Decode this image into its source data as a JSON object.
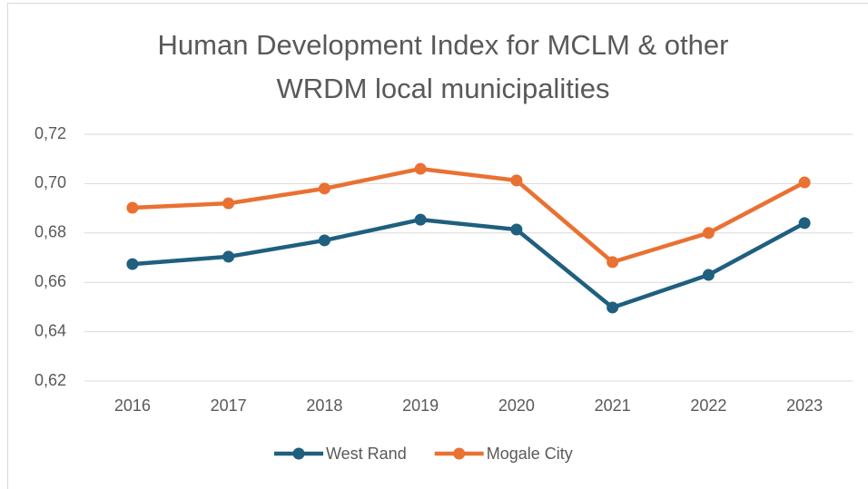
{
  "chart_data": {
    "type": "line",
    "title_lines": [
      "Human Development Index for MCLM & other",
      "WRDM local municipalities"
    ],
    "categories": [
      "2016",
      "2017",
      "2018",
      "2019",
      "2020",
      "2021",
      "2022",
      "2023"
    ],
    "series": [
      {
        "name": "West Rand",
        "color": "#1f5f7f",
        "values": [
          0.6674,
          0.6704,
          0.677,
          0.6854,
          0.6814,
          0.6498,
          0.663,
          0.684
        ]
      },
      {
        "name": "Mogale City",
        "color": "#e97132",
        "values": [
          0.6902,
          0.692,
          0.698,
          0.706,
          0.7013,
          0.6682,
          0.68,
          0.7005
        ]
      }
    ],
    "ylim": [
      0.62,
      0.72
    ],
    "yticks": [
      {
        "value": 0.62,
        "label": "0,62"
      },
      {
        "value": 0.64,
        "label": "0,64"
      },
      {
        "value": 0.66,
        "label": "0,66"
      },
      {
        "value": 0.68,
        "label": "0,68"
      },
      {
        "value": 0.7,
        "label": "0,70"
      },
      {
        "value": 0.72,
        "label": "0,72"
      }
    ],
    "grid": true,
    "legend": "bottom"
  }
}
